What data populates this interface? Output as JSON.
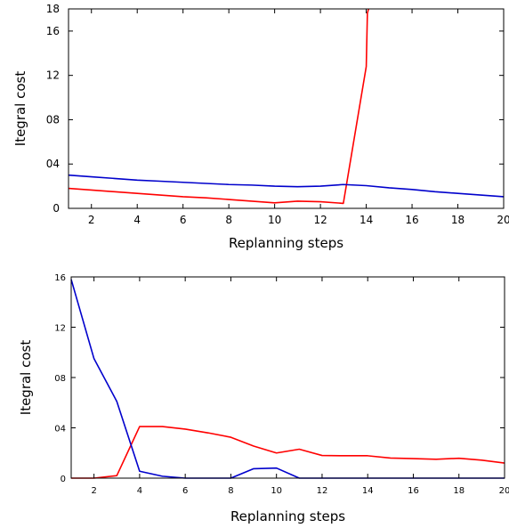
{
  "chart_data": [
    {
      "type": "line",
      "xlabel": "Replanning steps",
      "ylabel": "Itegral cost",
      "xlim": [
        1,
        20
      ],
      "ylim": [
        0,
        18
      ],
      "xticks": [
        2,
        4,
        6,
        8,
        10,
        12,
        14,
        16,
        18,
        20
      ],
      "xtick_labels": [
        "2",
        "4",
        "6",
        "8",
        "10",
        "12",
        "14",
        "16",
        "18",
        "20"
      ],
      "yticks": [
        0,
        4,
        8,
        12,
        16,
        18
      ],
      "ytick_labels": [
        "0",
        "04",
        "08",
        "12",
        "16",
        "18"
      ],
      "series": [
        {
          "color": "#ff0000",
          "x": [
            1,
            2,
            3,
            4,
            5,
            6,
            7,
            8,
            9,
            10,
            11,
            12,
            13,
            14,
            14.05,
            14.1
          ],
          "y": [
            1.8,
            1.65,
            1.5,
            1.35,
            1.2,
            1.05,
            0.95,
            0.8,
            0.65,
            0.5,
            0.65,
            0.6,
            0.45,
            12.8,
            17.6,
            18
          ]
        },
        {
          "color": "#0000cc",
          "x": [
            1,
            2,
            3,
            4,
            5,
            6,
            7,
            8,
            9,
            10,
            11,
            12,
            13,
            14,
            15,
            16,
            17,
            18,
            19,
            20
          ],
          "y": [
            3.0,
            2.85,
            2.7,
            2.55,
            2.45,
            2.35,
            2.25,
            2.15,
            2.1,
            2.0,
            1.95,
            2.0,
            2.15,
            2.05,
            1.85,
            1.7,
            1.5,
            1.35,
            1.2,
            1.05
          ]
        }
      ]
    },
    {
      "type": "line",
      "xlabel": "Replanning steps",
      "ylabel": "Itegral cost",
      "xlim": [
        1,
        20
      ],
      "ylim": [
        0,
        16
      ],
      "xticks": [
        2,
        4,
        6,
        8,
        10,
        12,
        14,
        16,
        18,
        20
      ],
      "xtick_labels": [
        "2",
        "4",
        "6",
        "8",
        "10",
        "12",
        "14",
        "16",
        "18",
        "20"
      ],
      "yticks": [
        0,
        4,
        8,
        12,
        16
      ],
      "ytick_labels": [
        "0",
        "04",
        "08",
        "12",
        "16"
      ],
      "series": [
        {
          "color": "#ff0000",
          "x": [
            1,
            2,
            3,
            4,
            5,
            6,
            7,
            8,
            9,
            10,
            11,
            12,
            13,
            14,
            15,
            16,
            17,
            18,
            19,
            20
          ],
          "y": [
            0,
            0,
            0.2,
            4.1,
            4.1,
            3.9,
            3.6,
            3.25,
            2.55,
            2.0,
            2.3,
            1.8,
            1.78,
            1.78,
            1.6,
            1.55,
            1.5,
            1.58,
            1.43,
            1.2
          ]
        },
        {
          "color": "#0000cc",
          "x": [
            1,
            2,
            3,
            4,
            5,
            6,
            7,
            8,
            9,
            10,
            11,
            12,
            13,
            14,
            15,
            16,
            17,
            18,
            19,
            20
          ],
          "y": [
            15.8,
            9.5,
            6.1,
            0.55,
            0.15,
            0.0,
            0.0,
            0.0,
            0.75,
            0.8,
            0.0,
            0.0,
            0.0,
            0.0,
            0.0,
            0.0,
            0.0,
            0.0,
            0.0,
            0.0
          ]
        }
      ]
    }
  ]
}
